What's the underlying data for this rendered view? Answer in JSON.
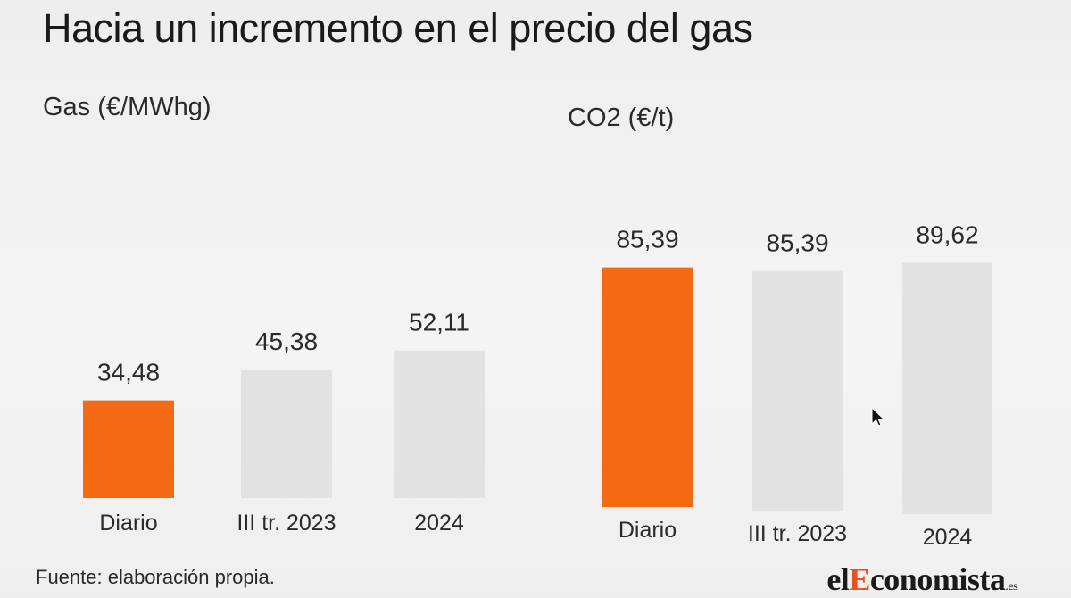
{
  "title": "Hacia un incremento en el precio del gas",
  "footer": {
    "source": "Fuente: elaboración propia."
  },
  "brand": {
    "prefix": "el",
    "accent": "E",
    "rest": "conomista",
    "suffix": ".es"
  },
  "colors": {
    "highlight": "#f46a14",
    "bar": "#e2e2e2"
  },
  "chart_data": [
    {
      "type": "bar",
      "title": "Gas (€/MWhg)",
      "categories": [
        "Diario",
        "III tr. 2023",
        "2024"
      ],
      "values": [
        34.48,
        45.38,
        52.11
      ],
      "labels": [
        "34,48",
        "45,38",
        "52,11"
      ],
      "highlight_index": 0,
      "ylim": [
        0,
        105
      ],
      "grid": false,
      "legend": "none"
    },
    {
      "type": "bar",
      "title": "CO2 (€/t)",
      "categories": [
        "Diario",
        "III tr. 2023",
        "2024"
      ],
      "values": [
        85.39,
        85.39,
        89.62
      ],
      "labels": [
        "85,39",
        "85,39",
        "89,62"
      ],
      "highlight_index": 0,
      "ylim": [
        0,
        105
      ],
      "grid": false,
      "legend": "none"
    }
  ]
}
